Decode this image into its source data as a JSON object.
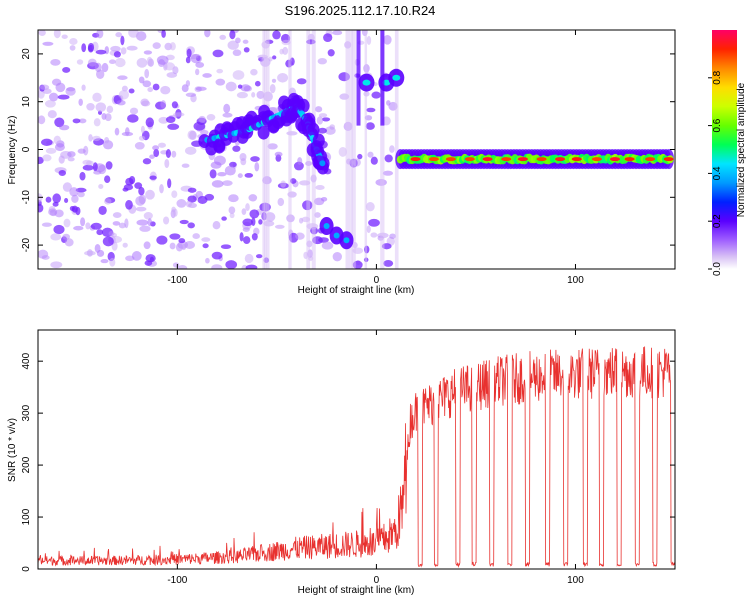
{
  "figure": {
    "title": "S196.2025.112.17.10.R24"
  },
  "chart_data": [
    {
      "type": "heatmap",
      "xlabel": "Height of straight line (km)",
      "ylabel": "Frequency (Hz)",
      "xlim": [
        -170,
        150
      ],
      "ylim": [
        -25,
        25
      ],
      "xticks": [
        -100,
        0,
        100
      ],
      "yticks": [
        -20,
        -10,
        0,
        10,
        20
      ],
      "colorbar": {
        "label": "Normalized spectral amplitude",
        "range": [
          0,
          1
        ],
        "ticks": [
          0.0,
          0.2,
          0.4,
          0.6,
          0.8
        ]
      },
      "features": {
        "noise_region_x": [
          -170,
          10
        ],
        "rising_band": [
          [
            -85,
            2
          ],
          [
            -75,
            3
          ],
          [
            -65,
            4
          ],
          [
            -55,
            6
          ],
          [
            -45,
            8
          ],
          [
            -40,
            9
          ],
          [
            -35,
            6
          ],
          [
            -30,
            0
          ],
          [
            -27,
            -3
          ]
        ],
        "low_blob": [
          [
            -25,
            -16
          ],
          [
            -20,
            -18
          ],
          [
            -15,
            -19
          ]
        ],
        "upper_blobs": [
          [
            -5,
            14
          ],
          [
            5,
            14
          ],
          [
            10,
            15
          ]
        ],
        "steady_line": {
          "x_start": 12,
          "x_end": 148,
          "frequency": -2
        }
      }
    },
    {
      "type": "line",
      "xlabel": "Height of straight line (km)",
      "ylabel": "SNR (10 * v/v)",
      "xlim": [
        -170,
        150
      ],
      "ylim": [
        0,
        460
      ],
      "xticks": [
        -100,
        0,
        100
      ],
      "yticks": [
        0,
        100,
        200,
        300,
        400
      ],
      "series": [
        {
          "color": "#e8312f",
          "envelope": [
            [
              -170,
              20
            ],
            [
              -140,
              20
            ],
            [
              -110,
              22
            ],
            [
              -90,
              25
            ],
            [
              -70,
              30
            ],
            [
              -55,
              40
            ],
            [
              -40,
              50
            ],
            [
              -25,
              55
            ],
            [
              -10,
              60
            ],
            [
              0,
              60
            ],
            [
              10,
              90
            ],
            [
              15,
              200
            ],
            [
              17,
              300
            ],
            [
              20,
              320
            ],
            [
              40,
              360
            ],
            [
              60,
              380
            ],
            [
              80,
              390
            ],
            [
              100,
              395
            ],
            [
              120,
              400
            ],
            [
              150,
              400
            ]
          ],
          "dropouts_x": [
            22,
            30,
            41,
            49,
            58,
            67,
            76,
            86,
            95,
            105,
            113,
            122,
            131,
            140,
            149
          ]
        }
      ]
    }
  ],
  "colors": {
    "line": "#e8312f",
    "heatmap_scale": [
      "#ffffff",
      "#cdb3f0",
      "#8a2be2",
      "#6a00ff",
      "#0033ff",
      "#00ccff",
      "#00ff66",
      "#88ff00",
      "#ffff00",
      "#ff8800",
      "#ff0000",
      "#ff0066"
    ]
  }
}
